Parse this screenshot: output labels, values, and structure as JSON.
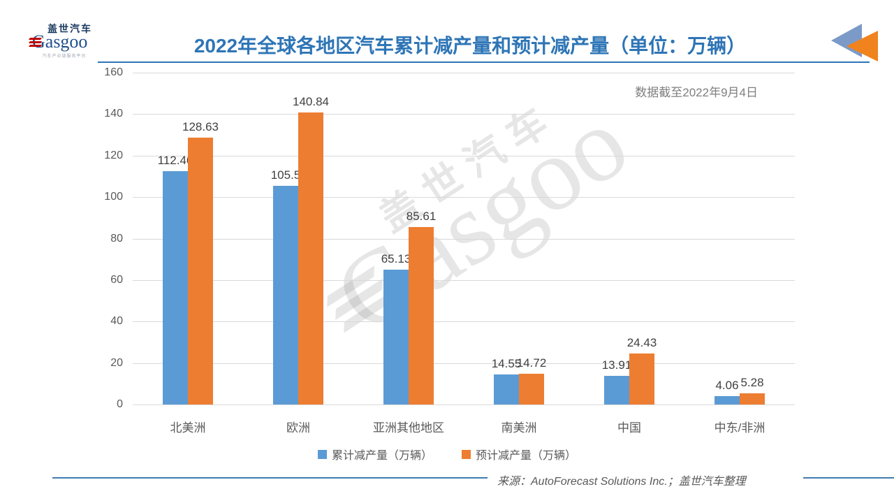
{
  "header": {
    "logo": {
      "chinese": "盖世汽车",
      "latin": "Gasgoo",
      "slogan": "汽车产业链服务平台"
    },
    "title": "2022年全球各地区汽车累计减产量和预计减产量（单位：万辆）"
  },
  "annotation": "数据截至2022年9月4日",
  "chart_data": {
    "type": "bar",
    "title": "2022年全球各地区汽车累计减产量和预计减产量（单位：万辆）",
    "categories": [
      "北美洲",
      "欧洲",
      "亚洲其他地区",
      "南美洲",
      "中国",
      "中东/非洲"
    ],
    "series": [
      {
        "name": "累计减产量（万辆）",
        "color": "#5B9BD5",
        "values": [
          112.46,
          105.5,
          65.13,
          14.55,
          13.91,
          4.06
        ]
      },
      {
        "name": "预计减产量（万辆）",
        "color": "#ED7D31",
        "values": [
          128.63,
          140.84,
          85.61,
          14.72,
          24.43,
          5.28
        ]
      }
    ],
    "ylim": [
      0,
      160
    ],
    "yticks": [
      0,
      20,
      40,
      60,
      80,
      100,
      120,
      140,
      160
    ],
    "grid": true,
    "data_labels": true,
    "legend_position": "bottom",
    "xlabel": "",
    "ylabel": ""
  },
  "watermark": {
    "chinese": "盖世汽车",
    "latin": "Gasgoo"
  },
  "footer": {
    "source": "来源：AutoForecast Solutions Inc.；盖世汽车整理"
  },
  "colors": {
    "title": "#2E75B6",
    "series_cumulative": "#5B9BD5",
    "series_forecast": "#ED7D31",
    "gridline": "#D9D9D9",
    "axis_text": "#595959",
    "data_label": "#404040",
    "annotation_text": "#7F7F7F",
    "footer_line": "#3E7CB1",
    "logo_red": "#C00000",
    "logo_blue": "#1F4E8C",
    "arrow_blue": "#7B9AC8",
    "arrow_orange": "#F0831E"
  }
}
